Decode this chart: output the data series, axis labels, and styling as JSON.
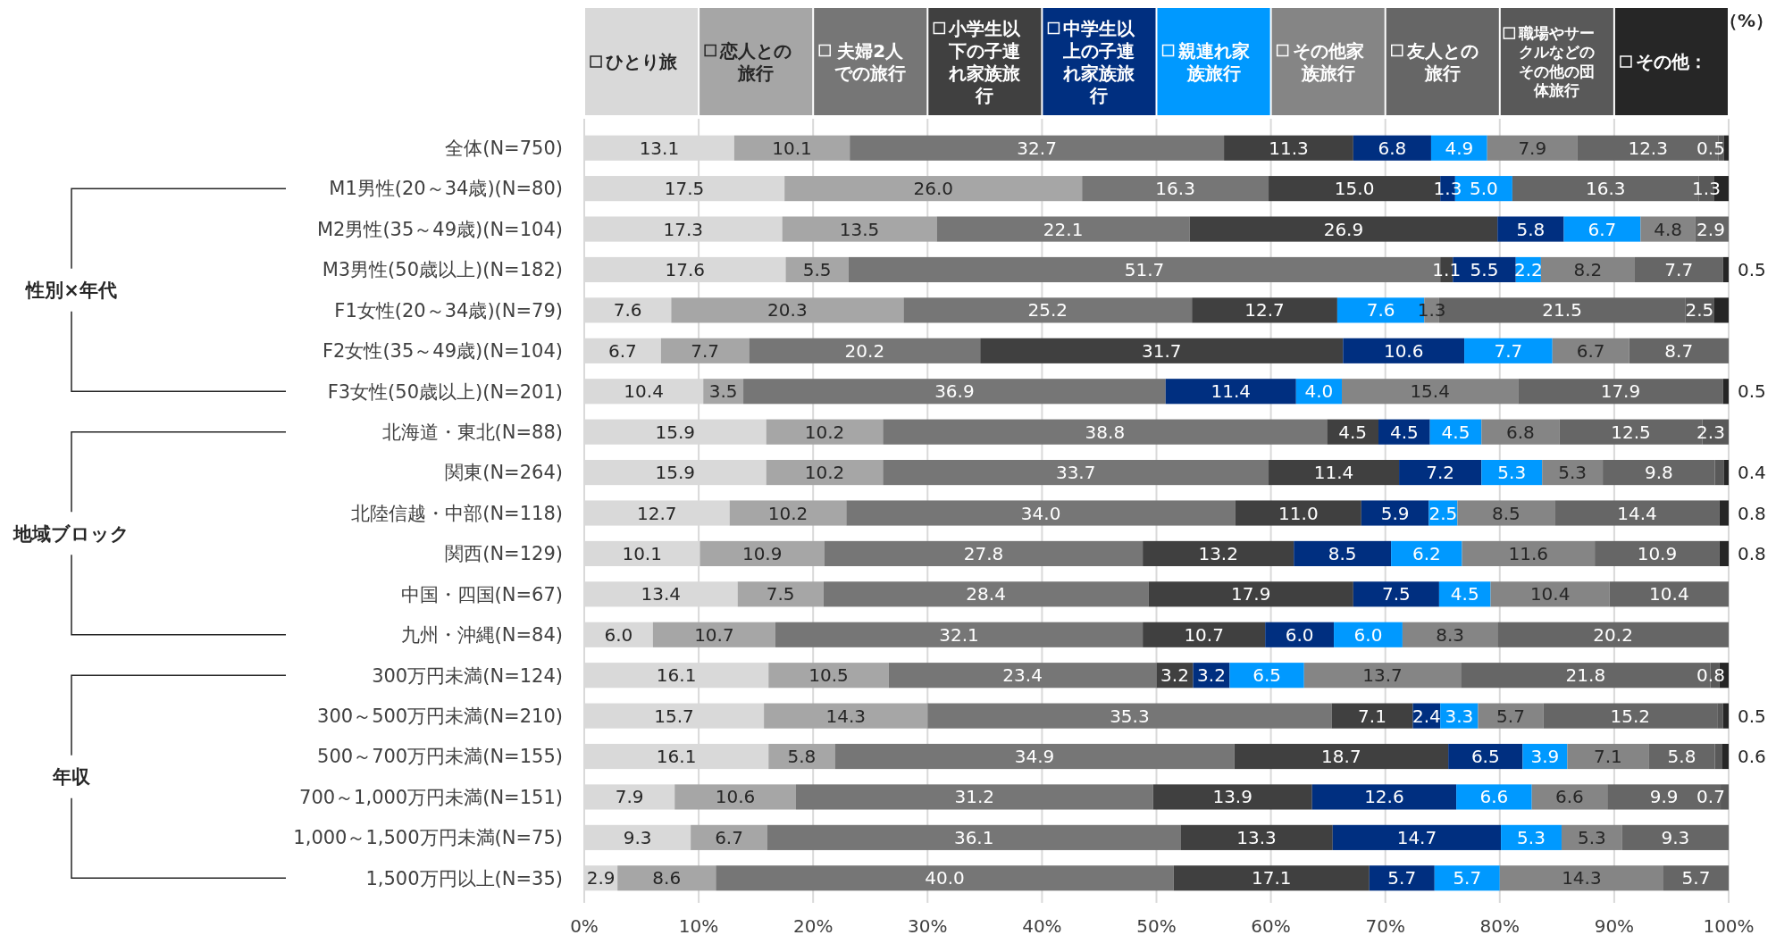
{
  "chart_data": {
    "type": "bar",
    "orientation": "horizontal",
    "stacked": true,
    "data_labels": false,
    "grid": "x",
    "legend": "top",
    "xlabel": "（%）",
    "categories": [
      "全体(N=750)",
      "M1男性(20～34歳)(N=80)",
      "M2男性(35～49歳)(N=104)",
      "M3男性(50歳以上)(N=182)",
      "F1女性(20～34歳)(N=79)",
      "F2女性(35～49歳)(N=104)",
      "F3女性(50歳以上)(N=201)",
      "北海道・東北(N=88)",
      "関東(N=264)",
      "北陸信越・中部(N=118)",
      "関西(N=129)",
      "中国・四国(N=67)",
      "九州・沖縄(N=84)",
      "300万円未満(N=124)",
      "300～500万円未満(N=210)",
      "500～700万円未満(N=155)",
      "700～1,000万円未満(N=151)",
      "1,000～1,500万円未満(N=75)",
      "1,500万円以上(N=35)"
    ],
    "xlim": [
      0,
      100
    ],
    "xticks": [
      {
        "value": 0,
        "label": "0%"
      },
      {
        "value": 10,
        "label": "10%"
      },
      {
        "value": 20,
        "label": "20%"
      },
      {
        "value": 30,
        "label": "30%"
      },
      {
        "value": 40,
        "label": "40%"
      },
      {
        "value": 50,
        "label": "50%"
      },
      {
        "value": 60,
        "label": "60%"
      },
      {
        "value": 70,
        "label": "70%"
      },
      {
        "value": 80,
        "label": "80%"
      },
      {
        "value": 90,
        "label": "90%"
      },
      {
        "value": 100,
        "label": "100%"
      }
    ],
    "annotations": [
      "性別×年代",
      "地域ブロック",
      "年収"
    ],
    "series": [
      {
        "name": "ひとり旅",
        "color": "#d9d9d9",
        "values": [
          13.1,
          17.5,
          17.3,
          17.6,
          7.6,
          6.7,
          10.4,
          15.9,
          15.9,
          12.7,
          10.1,
          13.4,
          6.0,
          16.1,
          15.7,
          16.1,
          7.9,
          9.3,
          2.9
        ],
        "value_labels": [
          "13.1",
          "17.5",
          "17.3",
          "17.6",
          "7.6",
          "6.7",
          "10.4",
          "15.9",
          "15.9",
          "12.7",
          "10.1",
          "13.4",
          "6.0",
          "16.1",
          "15.7",
          "16.1",
          "7.9",
          "9.3",
          "2.9"
        ]
      },
      {
        "name": "恋人との旅行",
        "color": "#a6a6a6",
        "values": [
          10.1,
          26.0,
          13.5,
          5.5,
          20.3,
          7.7,
          3.5,
          10.2,
          10.2,
          10.2,
          10.9,
          7.5,
          10.7,
          10.5,
          14.3,
          5.8,
          10.6,
          6.7,
          8.6
        ],
        "value_labels": [
          "10.1",
          "26.0",
          "13.5",
          "5.5",
          "20.3",
          "7.7",
          "3.5",
          "10.2",
          "10.2",
          "10.2",
          "10.9",
          "7.5",
          "10.7",
          "10.5",
          "14.3",
          "5.8",
          "10.6",
          "6.7",
          "8.6"
        ]
      },
      {
        "name": "夫婦2人での旅行",
        "color": "#767676",
        "values": [
          32.7,
          16.3,
          22.1,
          51.7,
          25.2,
          20.2,
          36.9,
          38.8,
          33.7,
          34.0,
          27.8,
          28.4,
          32.1,
          23.4,
          35.3,
          34.9,
          31.2,
          36.1,
          40.0
        ],
        "value_labels": [
          "32.7",
          "16.3",
          "22.1",
          "51.7",
          "25.2",
          "20.2",
          "36.9",
          "38.8",
          "33.7",
          "34.0",
          "27.8",
          "28.4",
          "32.1",
          "23.4",
          "35.3",
          "34.9",
          "31.2",
          "36.1",
          "40.0"
        ]
      },
      {
        "name": "小学生以下の子連れ家族旅行",
        "color": "#404040",
        "values": [
          11.3,
          15.0,
          26.9,
          1.1,
          12.7,
          31.7,
          0,
          4.5,
          11.4,
          11.0,
          13.2,
          17.9,
          10.7,
          3.2,
          7.1,
          18.7,
          13.9,
          13.3,
          17.1
        ],
        "value_labels": [
          "11.3",
          "15.0",
          "26.9",
          "1.1",
          "12.7",
          "31.7",
          null,
          "4.5",
          "11.4",
          "11.0",
          "13.2",
          "17.9",
          "10.7",
          "3.2",
          "7.1",
          "18.7",
          "13.9",
          "13.3",
          "17.1"
        ]
      },
      {
        "name": "中学生以上の子連れ家族旅行",
        "color": "#002f80",
        "values": [
          6.8,
          1.3,
          5.8,
          5.5,
          0,
          10.6,
          11.4,
          4.5,
          7.2,
          5.9,
          8.5,
          7.5,
          6.0,
          3.2,
          2.4,
          6.5,
          12.6,
          14.7,
          5.7
        ],
        "value_labels": [
          "6.8",
          "1.3",
          "5.8",
          "5.5",
          null,
          "10.6",
          "11.4",
          "4.5",
          "7.2",
          "5.9",
          "8.5",
          "7.5",
          "6.0",
          "3.2",
          "2.4",
          "6.5",
          "12.6",
          "14.7",
          "5.7"
        ]
      },
      {
        "name": "親連れ家族旅行",
        "color": "#0099ff",
        "values": [
          4.9,
          5.0,
          6.7,
          2.2,
          7.6,
          7.7,
          4.0,
          4.5,
          5.3,
          2.5,
          6.2,
          4.5,
          6.0,
          6.5,
          3.3,
          3.9,
          6.6,
          5.3,
          5.7
        ],
        "value_labels": [
          "4.9",
          "5.0",
          "6.7",
          "2.2",
          "7.6",
          "7.7",
          "4.0",
          "4.5",
          "5.3",
          "2.5",
          "6.2",
          "4.5",
          "6.0",
          "6.5",
          "3.3",
          "3.9",
          "6.6",
          "5.3",
          "5.7"
        ]
      },
      {
        "name": "その他家族旅行",
        "color": "#858585",
        "values": [
          7.9,
          0,
          4.8,
          8.2,
          1.3,
          6.7,
          15.4,
          6.8,
          5.3,
          8.5,
          11.6,
          10.4,
          8.3,
          13.7,
          5.7,
          7.1,
          6.6,
          5.3,
          14.3
        ],
        "value_labels": [
          "7.9",
          null,
          "4.8",
          "8.2",
          "1.3",
          "6.7",
          "15.4",
          "6.8",
          "5.3",
          "8.5",
          "11.6",
          "10.4",
          "8.3",
          "13.7",
          "5.7",
          "7.1",
          "6.6",
          "5.3",
          "14.3"
        ]
      },
      {
        "name": "友人との旅行",
        "color": "#666666",
        "values": [
          12.3,
          16.3,
          2.9,
          7.7,
          21.5,
          8.7,
          17.9,
          12.5,
          9.8,
          14.4,
          10.9,
          10.4,
          20.2,
          21.8,
          15.2,
          5.8,
          9.9,
          9.3,
          5.7
        ],
        "value_labels": [
          "12.3",
          "16.3",
          "2.9",
          "7.7",
          "21.5",
          "8.7",
          "17.9",
          "12.5",
          "9.8",
          "14.4",
          "10.9",
          "10.4",
          "20.2",
          "21.8",
          "15.2",
          "5.8",
          "9.9",
          "9.3",
          "5.7"
        ]
      },
      {
        "name": "職場やサークルなどのその他の団体旅行",
        "color": "#595959",
        "values": [
          0.5,
          1.3,
          0,
          0,
          2.5,
          0,
          0,
          2.3,
          0.8,
          0,
          0,
          0,
          0,
          0.8,
          0.5,
          0.6,
          0.7,
          0,
          0
        ],
        "value_labels": [
          "0.5",
          "1.3",
          null,
          null,
          "2.5",
          null,
          null,
          "2.3",
          null,
          null,
          null,
          null,
          null,
          "0.8",
          null,
          null,
          "0.7",
          null,
          null
        ]
      },
      {
        "name": "その他：",
        "color": "#262626",
        "values": [
          0.4,
          1.3,
          0,
          0.5,
          1.3,
          0,
          0.5,
          0,
          0.4,
          0.8,
          0.8,
          0,
          0,
          0.8,
          0.5,
          0.6,
          0,
          0,
          0
        ],
        "value_labels": [
          null,
          null,
          null,
          "0.5",
          null,
          null,
          "0.5",
          null,
          "0.4",
          "0.8",
          "0.8",
          null,
          null,
          null,
          "0.5",
          "0.6",
          null,
          null,
          null
        ]
      }
    ]
  }
}
